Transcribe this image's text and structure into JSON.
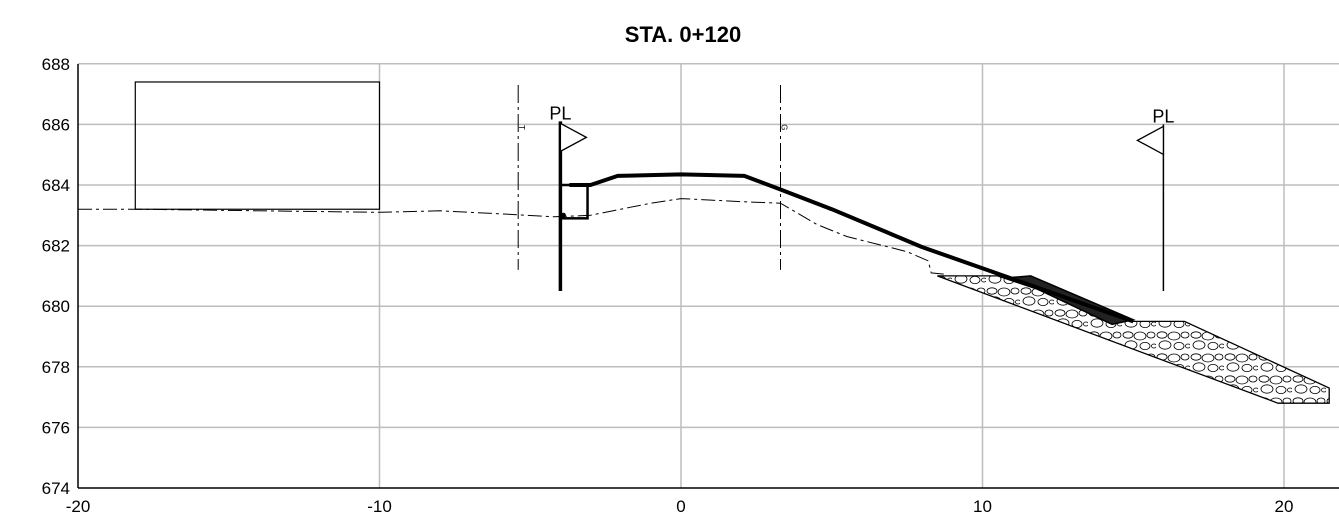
{
  "title": "STA. 0+120",
  "x_axis": {
    "min": -20,
    "max": 21.5,
    "ticks": [
      -20,
      -10,
      0,
      10,
      20
    ],
    "tick_labels": [
      "-20",
      "-10",
      "0",
      "10",
      "20"
    ]
  },
  "y_axis": {
    "min": 674,
    "max": 688,
    "ticks": [
      674,
      676,
      678,
      680,
      682,
      684,
      686,
      688
    ],
    "tick_labels": [
      "674",
      "676",
      "678",
      "680",
      "682",
      "684",
      "686",
      "688"
    ]
  },
  "property_line_label": "PL",
  "property_lines": [
    {
      "x": -4,
      "y_bottom": 680.5,
      "y_top": 686.1,
      "flag": "right"
    },
    {
      "x": 16,
      "y_bottom": 680.5,
      "y_top": 686.0,
      "flag": "left"
    }
  ],
  "building": {
    "x1": -18.1,
    "x2": -10.0,
    "y_bottom": 683.2,
    "y_top": 687.4
  },
  "existing_ground": [
    [
      -20,
      683.2
    ],
    [
      -18.1,
      683.2
    ],
    [
      -10,
      683.1
    ],
    [
      -8,
      683.15
    ],
    [
      -6,
      683.05
    ],
    [
      -4.2,
      682.95
    ],
    [
      -3,
      683.0
    ],
    [
      -2,
      683.2
    ],
    [
      -1,
      683.4
    ],
    [
      0,
      683.55
    ],
    [
      1,
      683.5
    ],
    [
      2,
      683.45
    ],
    [
      3.3,
      683.4
    ],
    [
      4.5,
      682.7
    ],
    [
      5.5,
      682.3
    ],
    [
      6.5,
      682.05
    ],
    [
      7.5,
      681.8
    ],
    [
      8.2,
      681.5
    ],
    [
      8.3,
      681.1
    ],
    [
      8.8,
      681.05
    ]
  ],
  "proposed_grade": [
    [
      -3.7,
      684.0
    ],
    [
      -3.0,
      684.0
    ],
    [
      -2.1,
      684.3
    ],
    [
      0,
      684.35
    ],
    [
      2.1,
      684.3
    ],
    [
      3.3,
      683.85
    ],
    [
      5,
      683.2
    ],
    [
      8,
      681.95
    ],
    [
      11,
      680.9
    ],
    [
      15.0,
      679.5
    ]
  ],
  "curb": {
    "x1": -4.0,
    "x2": -3.1,
    "y_bottom": 682.9,
    "y_top": 684.0
  },
  "centerlines": [
    {
      "x": -5.4,
      "y_bottom": 681.2,
      "y_top": 687.3,
      "label": "T"
    },
    {
      "x": 3.3,
      "y_bottom": 681.2,
      "y_top": 687.3,
      "label": "G"
    }
  ],
  "riprap": [
    [
      8.5,
      681.0
    ],
    [
      10.5,
      681.0
    ],
    [
      15.0,
      679.5
    ],
    [
      16.7,
      679.5
    ],
    [
      21.5,
      677.3
    ],
    [
      21.5,
      676.8
    ],
    [
      19.8,
      676.8
    ],
    [
      8.5,
      681.0
    ]
  ],
  "mat": [
    [
      11.0,
      680.95
    ],
    [
      11.6,
      681.0
    ],
    [
      15.0,
      679.55
    ],
    [
      14.3,
      679.4
    ]
  ]
}
